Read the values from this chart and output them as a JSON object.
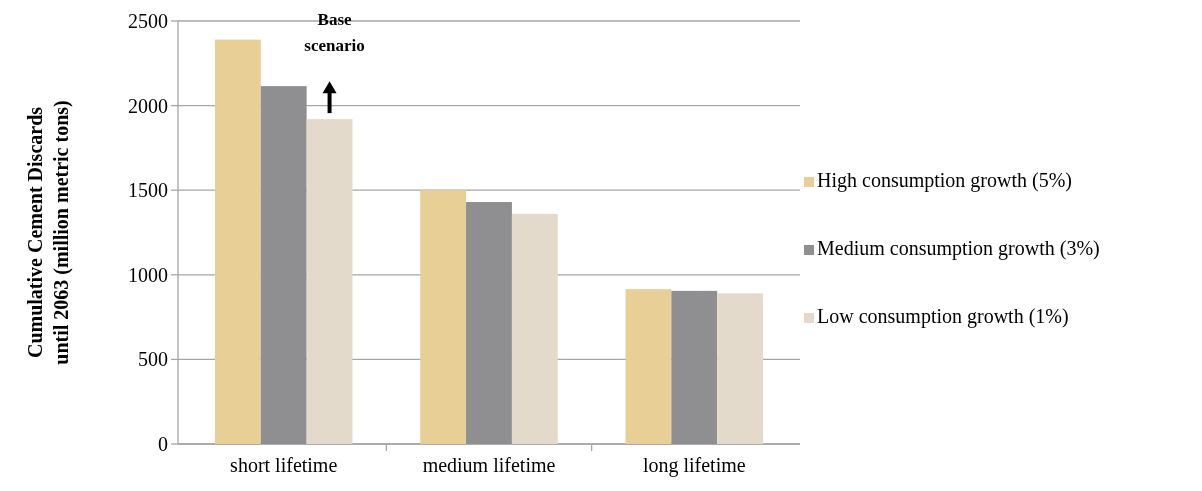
{
  "chart_data": {
    "type": "bar",
    "ylabel": "Cumulative Cement Discards until 2063 (million metric tons)",
    "categories": [
      "short lifetime",
      "medium lifetime",
      "long lifetime"
    ],
    "series": [
      {
        "name": "High consumption growth (5%)",
        "color": "#e8cf95",
        "values": [
          2390,
          1500,
          915
        ]
      },
      {
        "name": "Medium consumption growth (3%)",
        "color": "#8f8f92",
        "values": [
          2115,
          1430,
          905
        ]
      },
      {
        "name": "Low consumption growth (1%)",
        "color": "#e3dacb",
        "values": [
          1920,
          1360,
          890
        ]
      }
    ],
    "ylim": [
      0,
      2500
    ],
    "yticks": [
      0,
      500,
      1000,
      1500,
      2000,
      2500
    ],
    "grid": "y",
    "legend": "right",
    "annotations": [
      "Base scenario"
    ]
  }
}
